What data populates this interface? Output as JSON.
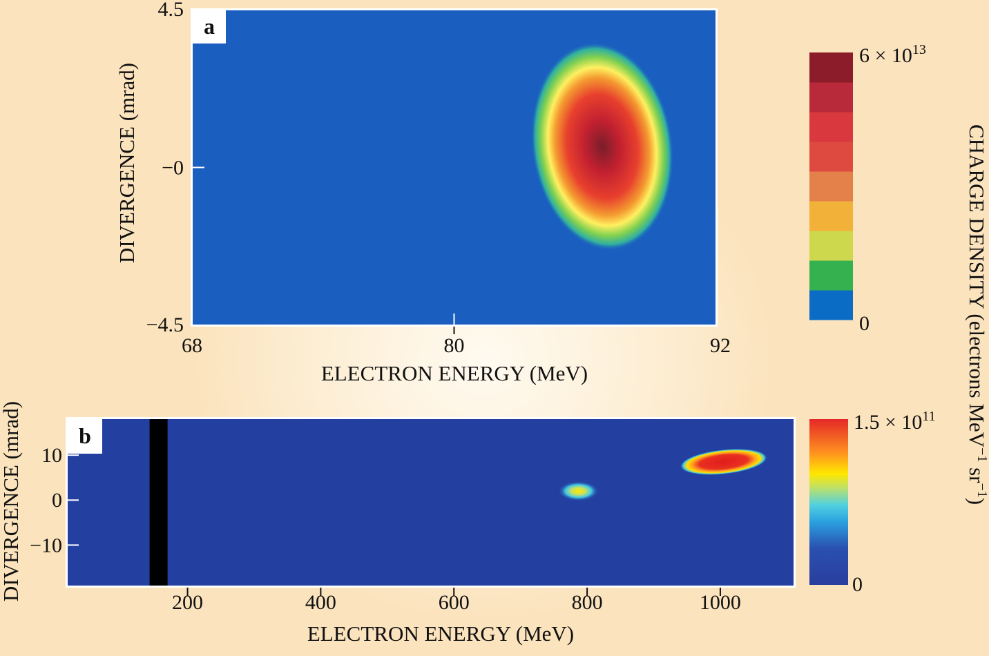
{
  "chart_data": [
    {
      "panel": "a",
      "type": "heatmap",
      "xlabel": "ELECTRON ENERGY (MeV)",
      "ylabel": "DIVERGENCE (mrad)",
      "xlim": [
        68,
        92
      ],
      "ylim": [
        -4.5,
        4.5
      ],
      "xticks": [
        {
          "value": 68,
          "label": "68"
        },
        {
          "value": 80,
          "label": "80"
        },
        {
          "value": 92,
          "label": "92"
        }
      ],
      "yticks": [
        {
          "value": 4.5,
          "label": "4.5"
        },
        {
          "value": 0,
          "label": "−0"
        },
        {
          "value": -4.5,
          "label": "−4.5"
        }
      ],
      "colorbar": {
        "min_label": "0",
        "max_base": "6 × 10",
        "max_exp": "13",
        "max_value": 60000000000000.0
      },
      "features": [
        {
          "name": "electron bunch",
          "energy_center": 86.8,
          "divergence_center": 0.6,
          "energy_width": 4.8,
          "divergence_width": 4.8,
          "peak_relative": 1.0
        }
      ]
    },
    {
      "panel": "b",
      "type": "heatmap",
      "xlabel": "ELECTRON ENERGY (MeV)",
      "ylabel": "DIVERGENCE (mrad)",
      "xlim": [
        20,
        1110
      ],
      "ylim": [
        -19,
        18
      ],
      "xticks": [
        {
          "value": 200,
          "label": "200"
        },
        {
          "value": 400,
          "label": "400"
        },
        {
          "value": 600,
          "label": "600"
        },
        {
          "value": 800,
          "label": "800"
        },
        {
          "value": 1000,
          "label": "1000"
        }
      ],
      "yticks": [
        {
          "value": 10,
          "label": "10"
        },
        {
          "value": 0,
          "label": "0"
        },
        {
          "value": -10,
          "label": "−10"
        }
      ],
      "colorbar": {
        "min_label": "0",
        "max_base": "1.5 × 10",
        "max_exp": "11",
        "max_value": 150000000000.0
      },
      "features": [
        {
          "name": "bunch at ~790 MeV",
          "energy_center": 787,
          "divergence_center": 2,
          "energy_width": 55,
          "divergence_width": 4,
          "peak_relative": 0.6
        },
        {
          "name": "bunch at ~1000 MeV",
          "energy_center": 1005,
          "divergence_center": 8.5,
          "energy_width": 120,
          "divergence_width": 5,
          "peak_relative": 1.0
        },
        {
          "name": "black stripe",
          "energy_from": 143,
          "energy_to": 170
        }
      ]
    }
  ],
  "labels": {
    "panel_a": "a",
    "panel_b": "b",
    "colorbar_title_main": "CHARGE DENSITY (electrons MeV",
    "colorbar_title_exp1": "−1",
    "colorbar_title_mid": " sr",
    "colorbar_title_exp2": "−1",
    "colorbar_title_end": ")"
  },
  "colors": {
    "a_background": "#1a5ec0",
    "b_background": "#2340a0",
    "black_stripe": "#000000",
    "frame": "#ffffff"
  }
}
